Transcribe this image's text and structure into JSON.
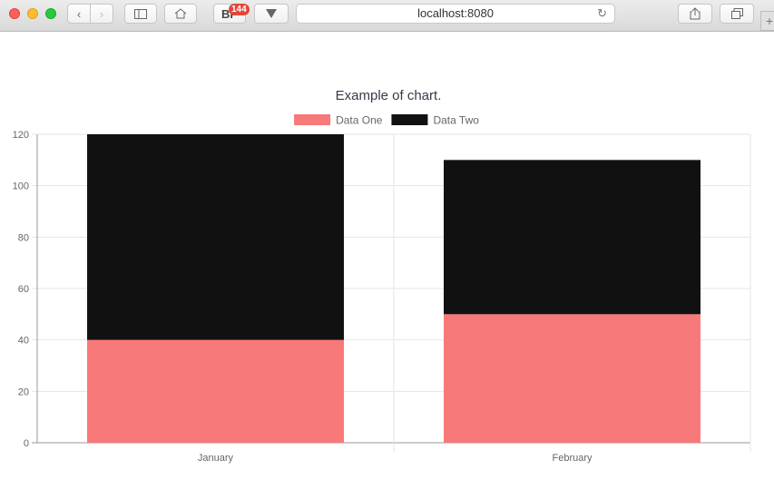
{
  "browser": {
    "address": "localhost:8080",
    "extension_badge": "144",
    "extension_label": "BP",
    "reload_glyph": "↻"
  },
  "chart_data": {
    "type": "bar",
    "stacked": true,
    "title": "Example of chart.",
    "categories": [
      "January",
      "February"
    ],
    "series": [
      {
        "name": "Data One",
        "values": [
          40,
          50
        ],
        "color": "#f87979"
      },
      {
        "name": "Data Two",
        "values": [
          80,
          60
        ],
        "color": "#111111"
      }
    ],
    "ylim": [
      0,
      120
    ],
    "yticks": [
      0,
      20,
      40,
      60,
      80,
      100,
      120
    ],
    "legend": "top",
    "grid": true
  }
}
